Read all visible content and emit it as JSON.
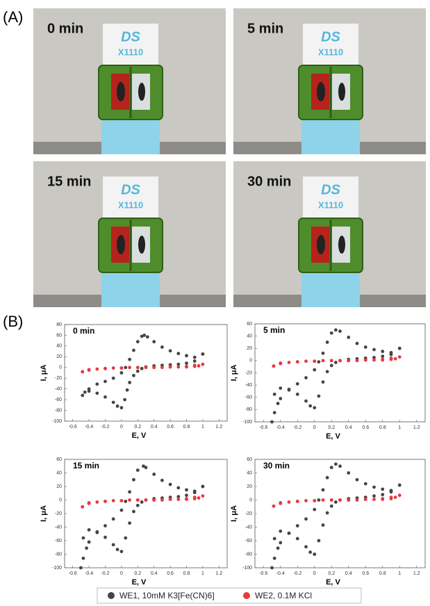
{
  "panel_labels": [
    "(A)",
    "(B)"
  ],
  "photos": [
    {
      "label": "0 min",
      "card_text": [
        "DS",
        "X1110"
      ]
    },
    {
      "label": "5 min",
      "card_text": [
        "DS",
        "X1110"
      ]
    },
    {
      "label": "15 min",
      "card_text": [
        "DS",
        "X1110"
      ]
    },
    {
      "label": "30 min",
      "card_text": [
        "DS",
        "X1110"
      ]
    }
  ],
  "chart_data": [
    {
      "type": "scatter",
      "title": "0 min",
      "x_label": "E, V",
      "y_label": "I, μA",
      "xlim": [
        -0.7,
        1.3
      ],
      "xticks": [
        -0.6,
        -0.4,
        -0.2,
        0,
        0.2,
        0.4,
        0.6,
        0.8,
        1,
        1.2
      ],
      "ylim": [
        -100,
        80
      ],
      "yticks": [
        -100,
        -80,
        -60,
        -40,
        -20,
        0,
        20,
        40,
        60,
        80
      ],
      "series": [
        {
          "name": "WE1, 10mM K3[Fe(CN)6]",
          "color": "#454545",
          "x": [
            1.0,
            0.9,
            0.8,
            0.7,
            0.6,
            0.5,
            0.4,
            0.3,
            0.25,
            0.2,
            0.15,
            0.1,
            0.07,
            0.04,
            0.0,
            -0.05,
            -0.1,
            -0.2,
            -0.3,
            -0.4,
            -0.48,
            -0.45,
            -0.4,
            -0.3,
            -0.2,
            -0.1,
            0.0,
            0.05,
            0.1,
            0.15,
            0.2,
            0.25,
            0.28,
            0.32,
            0.4,
            0.5,
            0.6,
            0.7,
            0.8,
            0.9,
            1.0
          ],
          "values": [
            25,
            12,
            8,
            6,
            5,
            4,
            3,
            1,
            -2,
            -7,
            -15,
            -28,
            -42,
            -60,
            -75,
            -72,
            -65,
            -55,
            -48,
            -44,
            -52,
            -46,
            -40,
            -31,
            -26,
            -20,
            -10,
            0,
            15,
            32,
            48,
            58,
            60,
            57,
            48,
            38,
            31,
            26,
            22,
            19,
            25
          ]
        },
        {
          "name": "WE2, 0.1M KCl",
          "color": "#e8393f",
          "x": [
            -0.48,
            -0.4,
            -0.3,
            -0.2,
            -0.1,
            0,
            0.1,
            0.2,
            0.3,
            0.4,
            0.5,
            0.6,
            0.7,
            0.8,
            0.9,
            0.95,
            1.0,
            0.9,
            0.8,
            0.6,
            0.4,
            0.2,
            0,
            -0.2,
            -0.4,
            -0.48
          ],
          "values": [
            -8,
            -5,
            -3,
            -2,
            -1,
            -1,
            0,
            0,
            0,
            0,
            0,
            1,
            1,
            1,
            2,
            3,
            6,
            4,
            2,
            1,
            0,
            0,
            -1,
            -2,
            -4,
            -8
          ]
        }
      ]
    },
    {
      "type": "scatter",
      "title": "5 min",
      "x_label": "E, V",
      "y_label": "I, μA",
      "xlim": [
        -0.7,
        1.3
      ],
      "xticks": [
        -0.6,
        -0.4,
        -0.2,
        0,
        0.2,
        0.4,
        0.6,
        0.8,
        1,
        1.2
      ],
      "ylim": [
        -100,
        60
      ],
      "yticks": [
        -100,
        -80,
        -60,
        -40,
        -20,
        0,
        20,
        40,
        60
      ],
      "series": [
        {
          "name": "WE1, 10mM K3[Fe(CN)6]",
          "color": "#454545",
          "x": [
            1.0,
            0.9,
            0.8,
            0.7,
            0.6,
            0.5,
            0.4,
            0.3,
            0.25,
            0.2,
            0.15,
            0.1,
            0.05,
            0.0,
            -0.05,
            -0.1,
            -0.2,
            -0.3,
            -0.4,
            -0.47,
            -0.5,
            -0.47,
            -0.43,
            -0.4,
            -0.3,
            -0.2,
            -0.1,
            0.0,
            0.05,
            0.1,
            0.15,
            0.2,
            0.25,
            0.3,
            0.4,
            0.5,
            0.6,
            0.7,
            0.8,
            0.9,
            1.0
          ],
          "values": [
            20,
            10,
            7,
            5,
            4,
            3,
            2,
            0,
            -3,
            -8,
            -18,
            -35,
            -58,
            -77,
            -74,
            -66,
            -55,
            -47,
            -45,
            -55,
            -100,
            -85,
            -70,
            -62,
            -48,
            -38,
            -28,
            -15,
            -2,
            12,
            30,
            45,
            50,
            48,
            38,
            28,
            22,
            18,
            15,
            13,
            20
          ]
        },
        {
          "name": "WE2, 0.1M KCl",
          "color": "#e8393f",
          "x": [
            -0.48,
            -0.4,
            -0.3,
            -0.2,
            -0.1,
            0,
            0.1,
            0.2,
            0.3,
            0.4,
            0.5,
            0.6,
            0.7,
            0.8,
            0.9,
            0.95,
            1.0,
            0.9,
            0.8,
            0.6,
            0.4,
            0.2,
            0,
            -0.2,
            -0.4,
            -0.48
          ],
          "values": [
            -9,
            -5,
            -3,
            -2,
            -1,
            -1,
            0,
            0,
            0,
            0,
            0,
            1,
            1,
            1,
            2,
            3,
            6,
            4,
            2,
            1,
            0,
            0,
            -1,
            -2,
            -4,
            -9
          ]
        }
      ]
    },
    {
      "type": "scatter",
      "title": "15 min",
      "x_label": "E, V",
      "y_label": "I, μA",
      "xlim": [
        -0.7,
        1.3
      ],
      "xticks": [
        -0.6,
        -0.4,
        -0.2,
        0,
        0.2,
        0.4,
        0.6,
        0.8,
        1,
        1.2
      ],
      "ylim": [
        -100,
        60
      ],
      "yticks": [
        -100,
        -80,
        -60,
        -40,
        -20,
        0,
        20,
        40,
        60
      ],
      "series": [
        {
          "name": "WE1, 10mM K3[Fe(CN)6]",
          "color": "#454545",
          "x": [
            1.0,
            0.9,
            0.8,
            0.7,
            0.6,
            0.5,
            0.4,
            0.3,
            0.25,
            0.2,
            0.15,
            0.1,
            0.05,
            0.0,
            -0.05,
            -0.1,
            -0.2,
            -0.3,
            -0.4,
            -0.47,
            -0.5,
            -0.47,
            -0.43,
            -0.4,
            -0.3,
            -0.2,
            -0.1,
            0.0,
            0.05,
            0.1,
            0.15,
            0.2,
            0.27,
            0.3,
            0.4,
            0.5,
            0.6,
            0.7,
            0.8,
            0.9,
            1.0
          ],
          "values": [
            20,
            11,
            7,
            5,
            4,
            3,
            2,
            0,
            -3,
            -8,
            -17,
            -34,
            -56,
            -76,
            -73,
            -66,
            -55,
            -47,
            -44,
            -56,
            -100,
            -86,
            -71,
            -62,
            -48,
            -38,
            -28,
            -15,
            -2,
            12,
            30,
            44,
            50,
            48,
            38,
            29,
            23,
            18,
            15,
            13,
            20
          ]
        },
        {
          "name": "WE2, 0.1M KCl",
          "color": "#e8393f",
          "x": [
            -0.48,
            -0.4,
            -0.3,
            -0.2,
            -0.1,
            0,
            0.1,
            0.2,
            0.3,
            0.4,
            0.5,
            0.6,
            0.7,
            0.8,
            0.9,
            0.95,
            1.0,
            0.9,
            0.8,
            0.6,
            0.4,
            0.2,
            0,
            -0.2,
            -0.4,
            -0.48
          ],
          "values": [
            -10,
            -5,
            -3,
            -2,
            -1,
            -1,
            0,
            0,
            0,
            0,
            0,
            1,
            1,
            1,
            2,
            3,
            6,
            4,
            2,
            1,
            0,
            0,
            -1,
            -2,
            -4,
            -10
          ]
        }
      ]
    },
    {
      "type": "scatter",
      "title": "30 min",
      "x_label": "E, V",
      "y_label": "I, μA",
      "xlim": [
        -0.7,
        1.3
      ],
      "xticks": [
        -0.6,
        -0.4,
        -0.2,
        0,
        0.2,
        0.4,
        0.6,
        0.8,
        1,
        1.2
      ],
      "ylim": [
        -100,
        60
      ],
      "yticks": [
        -100,
        -80,
        -60,
        -40,
        -20,
        0,
        20,
        40,
        60
      ],
      "series": [
        {
          "name": "WE1, 10mM K3[Fe(CN)6]",
          "color": "#454545",
          "x": [
            1.0,
            0.9,
            0.8,
            0.7,
            0.6,
            0.5,
            0.4,
            0.3,
            0.25,
            0.2,
            0.15,
            0.1,
            0.05,
            0.0,
            -0.05,
            -0.1,
            -0.2,
            -0.3,
            -0.4,
            -0.47,
            -0.5,
            -0.47,
            -0.43,
            -0.4,
            -0.3,
            -0.2,
            -0.1,
            0.0,
            0.05,
            0.1,
            0.15,
            0.2,
            0.25,
            0.3,
            0.4,
            0.5,
            0.6,
            0.7,
            0.8,
            0.9,
            1.0
          ],
          "values": [
            22,
            12,
            8,
            6,
            4,
            3,
            2,
            0,
            -3,
            -9,
            -19,
            -37,
            -60,
            -80,
            -77,
            -69,
            -57,
            -49,
            -46,
            -57,
            -100,
            -86,
            -71,
            -63,
            -49,
            -38,
            -28,
            -14,
            0,
            15,
            33,
            48,
            53,
            50,
            40,
            30,
            24,
            19,
            16,
            14,
            22
          ]
        },
        {
          "name": "WE2, 0.1M KCl",
          "color": "#e8393f",
          "x": [
            -0.48,
            -0.4,
            -0.3,
            -0.2,
            -0.1,
            0,
            0.1,
            0.2,
            0.3,
            0.4,
            0.5,
            0.6,
            0.7,
            0.8,
            0.9,
            0.95,
            1.0,
            0.9,
            0.8,
            0.6,
            0.4,
            0.2,
            0,
            -0.2,
            -0.4,
            -0.48
          ],
          "values": [
            -9,
            -5,
            -3,
            -2,
            -1,
            -1,
            0,
            0,
            0,
            0,
            0,
            1,
            1,
            1,
            2,
            4,
            7,
            4,
            2,
            1,
            0,
            0,
            -1,
            -2,
            -4,
            -9
          ]
        }
      ]
    }
  ]
}
